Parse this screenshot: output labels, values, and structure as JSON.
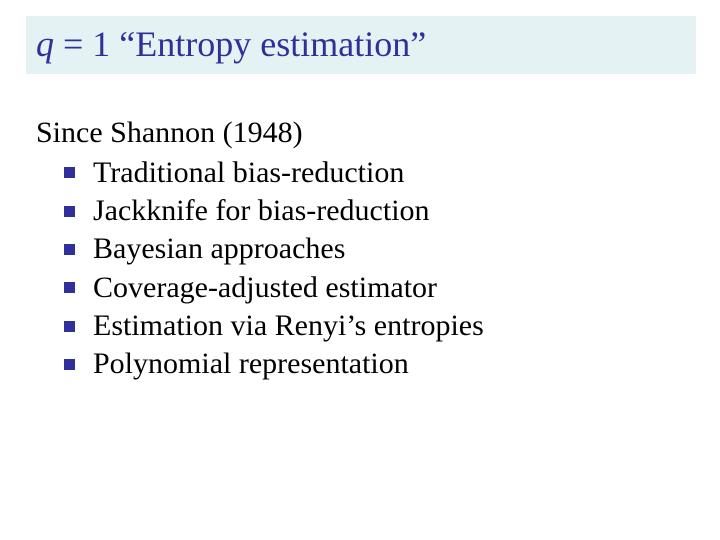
{
  "colors": {
    "title_bg": "#e4f2f3",
    "title_text": "#30309a",
    "body_text": "#000000",
    "bullet": "#30309a",
    "background": "#ffffff"
  },
  "typography": {
    "title_fontsize_pt": 27,
    "body_fontsize_pt": 22,
    "font_family": "Times New Roman"
  },
  "title": {
    "q_var": "q",
    "rest": " = 1 “Entropy estimation”"
  },
  "lead": "Since Shannon (1948)",
  "bullets": [
    "Traditional bias-reduction",
    "Jackknife for bias-reduction",
    "Bayesian approaches",
    "Coverage-adjusted estimator",
    "Estimation via Renyi’s entropies",
    "Polynomial representation"
  ]
}
